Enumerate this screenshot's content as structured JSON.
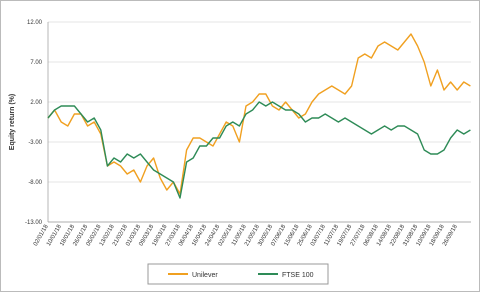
{
  "chart_data": {
    "type": "line",
    "y_label": "Equity return (%)",
    "categories": [
      "02/01/18",
      null,
      "10/01/18",
      null,
      "18/01/18",
      null,
      "26/01/18",
      null,
      "05/02/18",
      null,
      "13/02/18",
      null,
      "21/02/18",
      null,
      "01/03/18",
      null,
      "09/03/18",
      null,
      "19/03/18",
      null,
      "27/03/18",
      null,
      "06/04/18",
      null,
      "16/04/18",
      null,
      "24/04/18",
      null,
      "02/05/18",
      null,
      "11/05/18",
      null,
      "21/05/18",
      null,
      "30/05/18",
      null,
      "07/06/18",
      null,
      "15/06/18",
      null,
      "25/06/18",
      null,
      "03/07/18",
      null,
      "11/07/18",
      null,
      "19/07/18",
      null,
      "27/07/18",
      null,
      "06/08/18",
      null,
      "14/08/18",
      null,
      "22/08/18",
      null,
      "31/08/18",
      null,
      "10/09/18",
      null,
      "18/09/18",
      null,
      "26/09/18",
      null,
      null
    ],
    "series": [
      {
        "name": "Unilever",
        "color": "#f0a020",
        "values": [
          0,
          1.0,
          -0.5,
          -1.0,
          0.5,
          0.5,
          -1.0,
          -0.5,
          -2.0,
          -6.0,
          -5.5,
          -6.0,
          -7.0,
          -6.5,
          -8.0,
          -6.0,
          -5.0,
          -7.5,
          -9.0,
          -8.0,
          -9.5,
          -4.0,
          -2.5,
          -2.5,
          -3.0,
          -3.5,
          -2.0,
          -0.5,
          -1.0,
          -3.0,
          1.5,
          2.0,
          3.0,
          3.0,
          1.5,
          1.0,
          2.0,
          1.0,
          0,
          0.5,
          2.0,
          3.0,
          3.5,
          4.0,
          3.5,
          3.0,
          4.0,
          7.5,
          8.0,
          7.5,
          9.0,
          9.5,
          9.0,
          8.5,
          9.5,
          10.5,
          9.0,
          7.0,
          4.0,
          6.0,
          3.5,
          4.5,
          3.5,
          4.5,
          4.0
        ]
      },
      {
        "name": "FTSE 100",
        "color": "#2e8b57",
        "values": [
          0,
          1,
          1.5,
          1.5,
          1.5,
          0.5,
          -0.5,
          0,
          -1.5,
          -6,
          -5,
          -5.5,
          -4.5,
          -5,
          -4.5,
          -5.5,
          -6.5,
          -7,
          -7.5,
          -8,
          -10,
          -5.5,
          -5,
          -3.5,
          -3.5,
          -2.5,
          -2.5,
          -1,
          -0.5,
          -1,
          0.5,
          1.0,
          2.0,
          1.5,
          2,
          1.5,
          1.0,
          1.0,
          0.5,
          -0.5,
          0,
          0,
          0.5,
          0,
          -0.5,
          0,
          -0.5,
          -1,
          -1.5,
          -2,
          -1.5,
          -1,
          -1.5,
          -1,
          -1,
          -1.5,
          -2,
          -4,
          -4.5,
          -4.5,
          -4,
          -2.5,
          -1.5,
          -2,
          -1.5
        ]
      }
    ],
    "ylim": [
      -13,
      12
    ],
    "yticks": [
      {
        "value": -13,
        "label": "-13.00"
      },
      {
        "value": -8,
        "label": "-8.00"
      },
      {
        "value": -3,
        "label": "-3.00"
      },
      {
        "value": 2,
        "label": "2.00"
      },
      {
        "value": 7,
        "label": "7.00"
      },
      {
        "value": 12,
        "label": "12.00"
      }
    ],
    "grid": true
  }
}
